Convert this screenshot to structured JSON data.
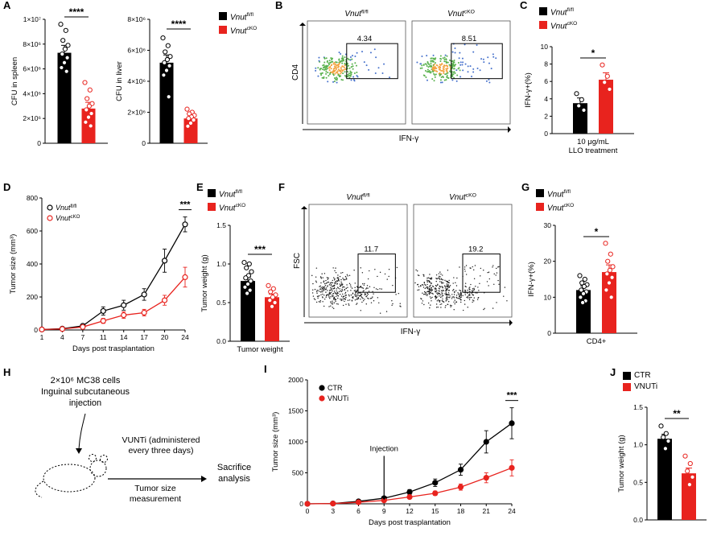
{
  "colors": {
    "black": "#000000",
    "red": "#e8231e",
    "flow_blue": "#4671cc",
    "flow_green": "#58b14c",
    "flow_orange": "#f2a13c",
    "flow_dot": "#1a1a1a"
  },
  "panel_labels": {
    "A": "A",
    "B": "B",
    "C": "C",
    "D": "D",
    "E": "E",
    "F": "F",
    "G": "G",
    "H": "H",
    "I": "I",
    "J": "J"
  },
  "legend_fl": [
    {
      "label": "Vnut|fl/fl",
      "color": "black"
    },
    {
      "label": "Vnut|cKO",
      "color": "red"
    }
  ],
  "legend_ctr": [
    {
      "label": "CTR",
      "color": "black"
    },
    {
      "label": "VNUTi",
      "color": "red"
    }
  ],
  "chart_data": {
    "A_spleen": {
      "type": "bar",
      "ylabel": "CFU in spleen",
      "ylim": [
        0,
        10000000
      ],
      "yticks": [
        {
          "v": 0,
          "label": "0"
        },
        {
          "v": 2000000,
          "label": "2×10⁶"
        },
        {
          "v": 4000000,
          "label": "4×10⁶"
        },
        {
          "v": 6000000,
          "label": "6×10⁶"
        },
        {
          "v": 8000000,
          "label": "8×10⁶"
        },
        {
          "v": 10000000,
          "label": "1×10⁷"
        }
      ],
      "sig": "****",
      "groups": [
        {
          "name": "Vnut|fl/fl",
          "color": "black",
          "mean": 7300000,
          "err": 600000,
          "points": [
            9600000,
            9100000,
            8300000,
            7900000,
            7600000,
            7200000,
            6900000,
            6500000,
            6100000,
            5800000
          ]
        },
        {
          "name": "Vnut|cKO",
          "color": "red",
          "mean": 2800000,
          "err": 500000,
          "points": [
            4900000,
            4300000,
            3600000,
            3200000,
            3000000,
            2700000,
            2400000,
            2100000,
            1700000,
            1400000
          ]
        }
      ]
    },
    "A_liver": {
      "type": "bar",
      "ylabel": "CFU in liver",
      "ylim": [
        0,
        8000000
      ],
      "yticks": [
        {
          "v": 0,
          "label": "0"
        },
        {
          "v": 2000000,
          "label": "2×10⁶"
        },
        {
          "v": 4000000,
          "label": "4×10⁶"
        },
        {
          "v": 6000000,
          "label": "6×10⁶"
        },
        {
          "v": 8000000,
          "label": "8×10⁶"
        }
      ],
      "sig": "****",
      "groups": [
        {
          "name": "Vnut|fl/fl",
          "color": "black",
          "mean": 5200000,
          "err": 500000,
          "points": [
            6800000,
            6300000,
            5900000,
            5600000,
            5400000,
            5200000,
            5000000,
            4700000,
            4400000,
            3000000
          ]
        },
        {
          "name": "Vnut|cKO",
          "color": "red",
          "mean": 1600000,
          "err": 250000,
          "points": [
            2200000,
            2000000,
            1900000,
            1800000,
            1700000,
            1600000,
            1500000,
            1300000,
            1100000
          ]
        }
      ]
    },
    "B": {
      "type": "scatter",
      "style": "pseudocolor",
      "ylabel": "CD4",
      "xlabel": "IFN-γ",
      "plots": [
        {
          "title": "Vnut|fl/fl",
          "gate_value": "4.34"
        },
        {
          "title": "Vnut|cKO",
          "gate_value": "8.51"
        }
      ]
    },
    "C": {
      "type": "bar",
      "ylabel": "IFN-γ+(%)",
      "ylim": [
        0,
        10
      ],
      "yticks": [
        {
          "v": 0,
          "label": "0"
        },
        {
          "v": 2,
          "label": "2"
        },
        {
          "v": 4,
          "label": "4"
        },
        {
          "v": 6,
          "label": "6"
        },
        {
          "v": 8,
          "label": "8"
        },
        {
          "v": 10,
          "label": "10"
        }
      ],
      "sig": "*",
      "xlabel": [
        "10 μg/mL",
        "LLO treatment"
      ],
      "groups": [
        {
          "name": "Vnut|fl/fl",
          "color": "black",
          "mean": 3.5,
          "err": 0.6,
          "points": [
            4.6,
            3.9,
            3.2,
            2.7
          ]
        },
        {
          "name": "Vnut|cKO",
          "color": "red",
          "mean": 6.2,
          "err": 0.8,
          "points": [
            7.9,
            6.6,
            5.9,
            5.1
          ]
        }
      ]
    },
    "D": {
      "type": "line",
      "ylabel": "Tumor size (mm³)",
      "xlabel": "Days post trasplantation",
      "x": [
        1,
        4,
        7,
        11,
        14,
        17,
        20,
        24
      ],
      "ylim": [
        0,
        800
      ],
      "yticks": [
        0,
        200,
        400,
        600,
        800
      ],
      "sig": "***",
      "marker": "open",
      "series": [
        {
          "name": "Vnut|fl/fl",
          "color": "black",
          "values": [
            3,
            8,
            25,
            115,
            150,
            215,
            420,
            640
          ],
          "err": [
            2,
            4,
            10,
            25,
            30,
            35,
            70,
            45
          ]
        },
        {
          "name": "Vnut|cKO",
          "color": "red",
          "values": [
            3,
            6,
            18,
            55,
            90,
            105,
            180,
            320
          ],
          "err": [
            2,
            3,
            7,
            15,
            20,
            20,
            30,
            60
          ]
        }
      ]
    },
    "E": {
      "type": "bar",
      "ylabel": "Tumor weight (g)",
      "ylim": [
        0,
        1.5
      ],
      "yticks": [
        {
          "v": 0,
          "label": "0.0"
        },
        {
          "v": 0.5,
          "label": "0.5"
        },
        {
          "v": 1,
          "label": "1.0"
        },
        {
          "v": 1.5,
          "label": "1.5"
        }
      ],
      "sig": "***",
      "xlabel": "Tumor weight",
      "groups": [
        {
          "name": "Vnut|fl/fl",
          "color": "black",
          "mean": 0.78,
          "err": 0.05,
          "points": [
            1.02,
            1.0,
            0.95,
            0.9,
            0.85,
            0.82,
            0.78,
            0.74,
            0.7,
            0.66,
            0.62
          ]
        },
        {
          "name": "Vnut|cKO",
          "color": "red",
          "mean": 0.57,
          "err": 0.04,
          "points": [
            0.72,
            0.68,
            0.64,
            0.6,
            0.57,
            0.53,
            0.5,
            0.45
          ]
        }
      ]
    },
    "F": {
      "type": "scatter",
      "style": "dots",
      "ylabel": "FSC",
      "xlabel": "IFN-γ",
      "plots": [
        {
          "title": "Vnut|fl/fl",
          "gate_value": "11.7"
        },
        {
          "title": "Vnut|cKO",
          "gate_value": "19.2"
        }
      ]
    },
    "G": {
      "type": "bar",
      "ylabel": "IFN-γ+(%)",
      "ylim": [
        0,
        30
      ],
      "yticks": [
        {
          "v": 0,
          "label": "0"
        },
        {
          "v": 10,
          "label": "10"
        },
        {
          "v": 20,
          "label": "20"
        },
        {
          "v": 30,
          "label": "30"
        }
      ],
      "sig": "*",
      "xlabel": "CD4+",
      "groups": [
        {
          "name": "Vnut|fl/fl",
          "color": "black",
          "mean": 12,
          "err": 1.2,
          "points": [
            16,
            15,
            14,
            13.5,
            13,
            12,
            11.5,
            11,
            10,
            9,
            8.5
          ]
        },
        {
          "name": "Vnut|cKO",
          "color": "red",
          "mean": 17,
          "err": 2,
          "points": [
            25,
            22,
            20,
            18.5,
            17.5,
            16.5,
            15.5,
            14,
            12,
            10
          ]
        }
      ]
    },
    "I": {
      "type": "line",
      "ylabel": "Tumor size (mm³)",
      "xlabel": "Days post trasplantation",
      "x": [
        0,
        3,
        6,
        9,
        12,
        15,
        18,
        21,
        24
      ],
      "ylim": [
        0,
        2000
      ],
      "yticks": [
        0,
        500,
        1000,
        1500,
        2000
      ],
      "sig": "***",
      "marker": "filled",
      "annotation": {
        "text": "Injection",
        "x": 9
      },
      "series": [
        {
          "name": "CTR",
          "color": "black",
          "values": [
            0,
            5,
            40,
            90,
            190,
            340,
            550,
            1000,
            1300
          ],
          "err": [
            0,
            3,
            10,
            20,
            40,
            60,
            90,
            180,
            250
          ]
        },
        {
          "name": "VNUTi",
          "color": "red",
          "values": [
            0,
            4,
            25,
            55,
            110,
            170,
            270,
            420,
            580
          ],
          "err": [
            0,
            2,
            8,
            15,
            25,
            35,
            50,
            80,
            130
          ]
        }
      ]
    },
    "J": {
      "type": "bar",
      "ylabel": "Tumor weight (g)",
      "ylim": [
        0,
        1.5
      ],
      "yticks": [
        {
          "v": 0,
          "label": "0.0"
        },
        {
          "v": 0.5,
          "label": "0.5"
        },
        {
          "v": 1,
          "label": "1.0"
        },
        {
          "v": 1.5,
          "label": "1.5"
        }
      ],
      "sig": "**",
      "groups": [
        {
          "name": "CTR",
          "color": "black",
          "mean": 1.08,
          "err": 0.06,
          "points": [
            1.25,
            1.15,
            1.1,
            1.05,
            0.95
          ]
        },
        {
          "name": "VNUTi",
          "color": "red",
          "mean": 0.62,
          "err": 0.07,
          "points": [
            0.85,
            0.75,
            0.65,
            0.57,
            0.47
          ]
        }
      ]
    }
  },
  "panelH": {
    "cells_line1": "2×10⁶ MC38 cells",
    "cells_line2": "Inguinal subcutaneous",
    "cells_line3": "injection",
    "treat_line1": "VUNTi (administered",
    "treat_line2": "every three days)",
    "measure_line1": "Tumor size",
    "measure_line2": "measurement",
    "end_line1": "Sacrifice",
    "end_line2": "analysis"
  }
}
